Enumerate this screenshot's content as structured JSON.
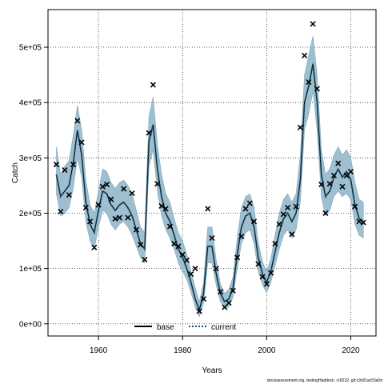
{
  "chart_data": {
    "type": "line",
    "xlabel": "Years",
    "ylabel": "Catch",
    "xlim": [
      1948,
      2026
    ],
    "ylim": [
      -22000,
      568000
    ],
    "x_ticks": [
      1960,
      1980,
      2000,
      2020
    ],
    "x_tick_labels": [
      "1960",
      "1980",
      "2000",
      "2020"
    ],
    "y_ticks": [
      0,
      100000,
      200000,
      300000,
      400000,
      500000
    ],
    "y_tick_labels": [
      "0e+00",
      "1e+05",
      "2e+05",
      "3e+05",
      "4e+05",
      "5e+05"
    ],
    "grid": true,
    "legend": {
      "placement": "bottom",
      "entries": [
        "base",
        "current"
      ]
    },
    "footer": "stockassessment.org, testingHaddock, r18232, git:c9c81ac53a0d",
    "colors": {
      "band": "#9dbfcf",
      "band_edge": "#7fa6b8",
      "line": "#000000",
      "current": "#1a4d6e",
      "points": "#000000"
    },
    "series": [
      {
        "name": "current",
        "style": "dotted",
        "x": [
          1950,
          1951,
          1952,
          1953,
          1954,
          1955,
          1956,
          1957,
          1958,
          1959,
          1960,
          1961,
          1962,
          1963,
          1964,
          1965,
          1966,
          1967,
          1968,
          1969,
          1970,
          1971,
          1972,
          1973,
          1974,
          1975,
          1976,
          1977,
          1978,
          1979,
          1980,
          1981,
          1982,
          1983,
          1984,
          1985,
          1986,
          1987,
          1988,
          1989,
          1990,
          1991,
          1992,
          1993,
          1994,
          1995,
          1996,
          1997,
          1998,
          1999,
          2000,
          2001,
          2002,
          2003,
          2004,
          2005,
          2006,
          2007,
          2008,
          2009,
          2010,
          2011,
          2012,
          2013,
          2014,
          2015,
          2016,
          2017,
          2018,
          2019,
          2020,
          2021,
          2022,
          2023
        ],
        "y": [
          270000,
          230000,
          240000,
          250000,
          290000,
          350000,
          305000,
          220000,
          180000,
          165000,
          205000,
          240000,
          235000,
          215000,
          205000,
          215000,
          220000,
          210000,
          195000,
          170000,
          145000,
          135000,
          330000,
          360000,
          280000,
          230000,
          200000,
          185000,
          160000,
          135000,
          120000,
          100000,
          75000,
          45000,
          25000,
          55000,
          140000,
          140000,
          90000,
          55000,
          40000,
          45000,
          65000,
          125000,
          175000,
          195000,
          200000,
          175000,
          120000,
          90000,
          75000,
          95000,
          130000,
          165000,
          190000,
          200000,
          185000,
          200000,
          260000,
          400000,
          430000,
          470000,
          400000,
          270000,
          230000,
          240000,
          265000,
          280000,
          265000,
          275000,
          260000,
          215000,
          190000,
          185000
        ],
        "lower": [
          235000,
          195000,
          200000,
          210000,
          245000,
          300000,
          265000,
          185000,
          150000,
          135000,
          175000,
          205000,
          200000,
          180000,
          170000,
          180000,
          185000,
          175000,
          160000,
          140000,
          120000,
          110000,
          285000,
          315000,
          240000,
          195000,
          170000,
          155000,
          135000,
          110000,
          95000,
          80000,
          57000,
          30000,
          13000,
          38000,
          110000,
          110000,
          70000,
          40000,
          28000,
          30000,
          48000,
          100000,
          145000,
          165000,
          170000,
          145000,
          95000,
          70000,
          57000,
          75000,
          105000,
          135000,
          160000,
          170000,
          155000,
          170000,
          220000,
          350000,
          380000,
          420000,
          350000,
          230000,
          195000,
          205000,
          230000,
          240000,
          230000,
          235000,
          225000,
          180000,
          160000,
          155000
        ],
        "upper": [
          320000,
          270000,
          285000,
          295000,
          340000,
          395000,
          350000,
          260000,
          215000,
          200000,
          240000,
          280000,
          275000,
          255000,
          245000,
          255000,
          260000,
          250000,
          235000,
          205000,
          175000,
          165000,
          375000,
          410000,
          325000,
          270000,
          235000,
          220000,
          190000,
          165000,
          150000,
          125000,
          95000,
          65000,
          40000,
          75000,
          175000,
          175000,
          115000,
          72000,
          55000,
          62000,
          85000,
          155000,
          210000,
          230000,
          235000,
          210000,
          148000,
          112000,
          95000,
          118000,
          160000,
          200000,
          225000,
          235000,
          220000,
          235000,
          305000,
          450000,
          485000,
          520000,
          450000,
          315000,
          270000,
          280000,
          305000,
          320000,
          305000,
          315000,
          300000,
          255000,
          225000,
          220000
        ]
      },
      {
        "name": "base",
        "style": "solid",
        "x": [
          1950,
          1951,
          1952,
          1953,
          1954,
          1955,
          1956,
          1957,
          1958,
          1959,
          1960,
          1961,
          1962,
          1963,
          1964,
          1965,
          1966,
          1967,
          1968,
          1969,
          1970,
          1971,
          1972,
          1973,
          1974,
          1975,
          1976,
          1977,
          1978,
          1979,
          1980,
          1981,
          1982,
          1983,
          1984,
          1985,
          1986,
          1987,
          1988,
          1989,
          1990,
          1991,
          1992,
          1993,
          1994,
          1995,
          1996,
          1997,
          1998,
          1999,
          2000,
          2001,
          2002,
          2003,
          2004,
          2005,
          2006,
          2007,
          2008,
          2009,
          2010,
          2011,
          2012,
          2013,
          2014,
          2015,
          2016,
          2017,
          2018,
          2019,
          2020,
          2021,
          2022,
          2023
        ],
        "y": [
          270000,
          230000,
          240000,
          250000,
          290000,
          350000,
          305000,
          220000,
          180000,
          165000,
          205000,
          240000,
          235000,
          215000,
          205000,
          215000,
          220000,
          210000,
          195000,
          170000,
          145000,
          135000,
          330000,
          360000,
          280000,
          230000,
          200000,
          185000,
          160000,
          135000,
          120000,
          100000,
          75000,
          45000,
          25000,
          55000,
          140000,
          140000,
          90000,
          55000,
          40000,
          45000,
          65000,
          125000,
          175000,
          195000,
          200000,
          175000,
          120000,
          90000,
          75000,
          95000,
          130000,
          165000,
          190000,
          200000,
          185000,
          200000,
          260000,
          400000,
          430000,
          470000,
          400000,
          270000,
          230000,
          240000,
          265000,
          280000,
          265000,
          275000,
          260000,
          215000,
          190000,
          185000
        ]
      },
      {
        "name": "observed",
        "style": "cross",
        "x": [
          1950,
          1951,
          1952,
          1953,
          1954,
          1955,
          1956,
          1957,
          1958,
          1959,
          1960,
          1961,
          1962,
          1963,
          1964,
          1965,
          1966,
          1967,
          1968,
          1969,
          1970,
          1971,
          1972,
          1973,
          1974,
          1975,
          1976,
          1977,
          1978,
          1979,
          1980,
          1981,
          1982,
          1983,
          1984,
          1985,
          1986,
          1987,
          1988,
          1989,
          1990,
          1991,
          1992,
          1993,
          1994,
          1995,
          1996,
          1997,
          1998,
          1999,
          2000,
          2001,
          2002,
          2003,
          2004,
          2005,
          2006,
          2007,
          2008,
          2009,
          2010,
          2011,
          2012,
          2013,
          2014,
          2015,
          2016,
          2017,
          2018,
          2019,
          2020,
          2021,
          2022,
          2023
        ],
        "y": [
          288000,
          203000,
          278000,
          233000,
          288000,
          367000,
          328000,
          210000,
          185000,
          138000,
          215000,
          248000,
          252000,
          225000,
          190000,
          192000,
          244000,
          192000,
          236000,
          170000,
          143000,
          116000,
          345000,
          432000,
          253000,
          213000,
          208000,
          176000,
          145000,
          140000,
          125000,
          115000,
          90000,
          100000,
          23000,
          45000,
          208000,
          155000,
          100000,
          58000,
          30000,
          38000,
          60000,
          120000,
          158000,
          208000,
          218000,
          185000,
          108000,
          85000,
          72000,
          92000,
          145000,
          180000,
          198000,
          210000,
          162000,
          212000,
          355000,
          485000,
          437000,
          542000,
          425000,
          252000,
          200000,
          253000,
          268000,
          290000,
          248000,
          268000,
          275000,
          212000,
          185000,
          183000
        ]
      }
    ]
  }
}
